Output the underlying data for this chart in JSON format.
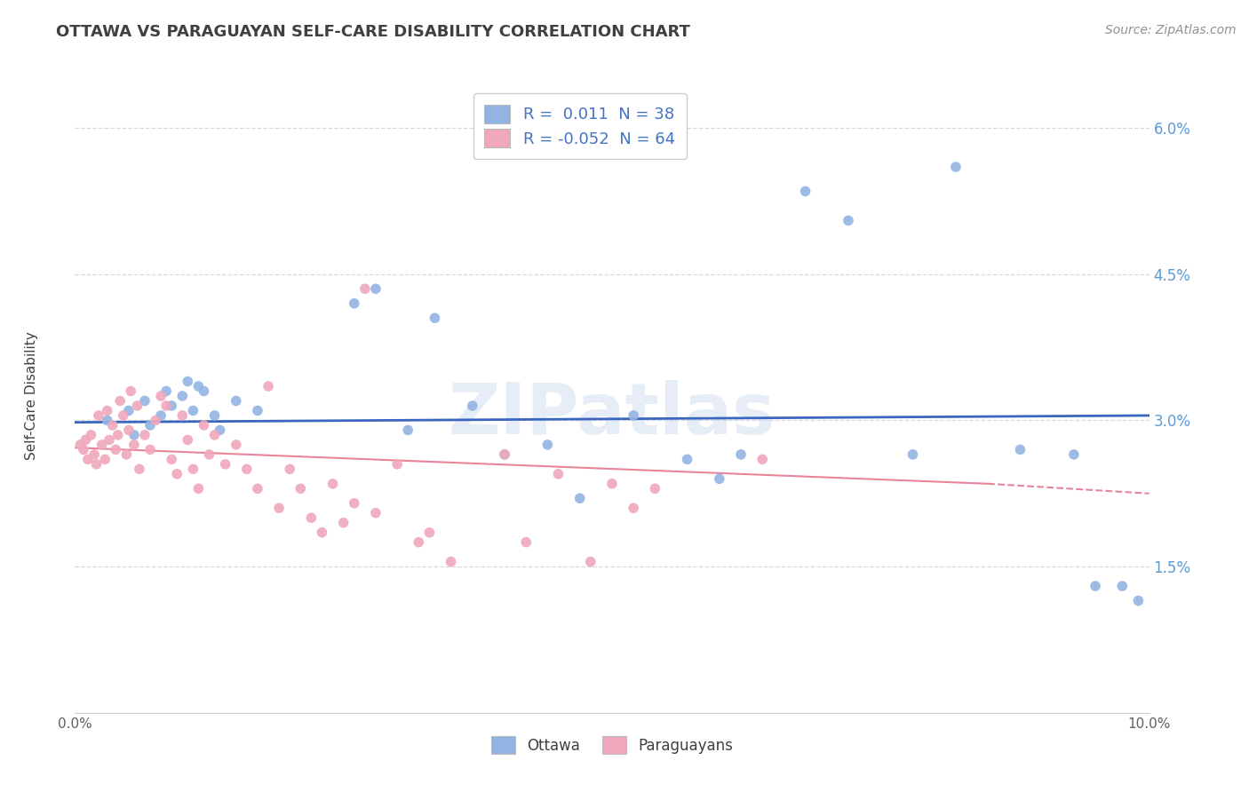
{
  "title": "OTTAWA VS PARAGUAYAN SELF-CARE DISABILITY CORRELATION CHART",
  "source": "Source: ZipAtlas.com",
  "ylabel": "Self-Care Disability",
  "xlim": [
    0.0,
    10.0
  ],
  "ylim": [
    0.0,
    6.5
  ],
  "yticks": [
    1.5,
    3.0,
    4.5,
    6.0
  ],
  "ytick_labels": [
    "1.5%",
    "3.0%",
    "4.5%",
    "6.0%"
  ],
  "ottawa_color": "#92b4e3",
  "paraguayan_color": "#f0a8bc",
  "trendline_ottawa_color": "#3a66c0",
  "trendline_paraguayan_color": "#e8849a",
  "watermark": "ZIPatlas",
  "bg_color": "#ffffff",
  "grid_color": "#d8d8d8",
  "title_color": "#404040",
  "source_color": "#909090",
  "ottawa_points": [
    [
      0.3,
      3.0
    ],
    [
      0.5,
      3.1
    ],
    [
      0.55,
      2.85
    ],
    [
      0.65,
      3.2
    ],
    [
      0.7,
      2.95
    ],
    [
      0.8,
      3.05
    ],
    [
      0.85,
      3.3
    ],
    [
      0.9,
      3.15
    ],
    [
      1.0,
      3.25
    ],
    [
      1.05,
      3.4
    ],
    [
      1.1,
      3.1
    ],
    [
      1.15,
      3.35
    ],
    [
      1.2,
      3.3
    ],
    [
      1.3,
      3.05
    ],
    [
      1.35,
      2.9
    ],
    [
      1.5,
      3.2
    ],
    [
      1.7,
      3.1
    ],
    [
      2.6,
      4.2
    ],
    [
      2.8,
      4.35
    ],
    [
      3.1,
      2.9
    ],
    [
      3.35,
      4.05
    ],
    [
      3.7,
      3.15
    ],
    [
      4.0,
      2.65
    ],
    [
      4.4,
      2.75
    ],
    [
      4.7,
      2.2
    ],
    [
      5.2,
      3.05
    ],
    [
      5.7,
      2.6
    ],
    [
      6.0,
      2.4
    ],
    [
      6.2,
      2.65
    ],
    [
      6.8,
      5.35
    ],
    [
      7.2,
      5.05
    ],
    [
      7.8,
      2.65
    ],
    [
      8.2,
      5.6
    ],
    [
      8.8,
      2.7
    ],
    [
      9.3,
      2.65
    ],
    [
      9.5,
      1.3
    ],
    [
      9.75,
      1.3
    ],
    [
      9.9,
      1.15
    ]
  ],
  "paraguayan_points": [
    [
      0.05,
      2.75
    ],
    [
      0.08,
      2.7
    ],
    [
      0.1,
      2.8
    ],
    [
      0.12,
      2.6
    ],
    [
      0.15,
      2.85
    ],
    [
      0.18,
      2.65
    ],
    [
      0.2,
      2.55
    ],
    [
      0.22,
      3.05
    ],
    [
      0.25,
      2.75
    ],
    [
      0.28,
      2.6
    ],
    [
      0.3,
      3.1
    ],
    [
      0.32,
      2.8
    ],
    [
      0.35,
      2.95
    ],
    [
      0.38,
      2.7
    ],
    [
      0.4,
      2.85
    ],
    [
      0.42,
      3.2
    ],
    [
      0.45,
      3.05
    ],
    [
      0.48,
      2.65
    ],
    [
      0.5,
      2.9
    ],
    [
      0.52,
      3.3
    ],
    [
      0.55,
      2.75
    ],
    [
      0.58,
      3.15
    ],
    [
      0.6,
      2.5
    ],
    [
      0.65,
      2.85
    ],
    [
      0.7,
      2.7
    ],
    [
      0.75,
      3.0
    ],
    [
      0.8,
      3.25
    ],
    [
      0.85,
      3.15
    ],
    [
      0.9,
      2.6
    ],
    [
      0.95,
      2.45
    ],
    [
      1.0,
      3.05
    ],
    [
      1.05,
      2.8
    ],
    [
      1.1,
      2.5
    ],
    [
      1.15,
      2.3
    ],
    [
      1.2,
      2.95
    ],
    [
      1.25,
      2.65
    ],
    [
      1.3,
      2.85
    ],
    [
      1.4,
      2.55
    ],
    [
      1.5,
      2.75
    ],
    [
      1.6,
      2.5
    ],
    [
      1.7,
      2.3
    ],
    [
      1.8,
      3.35
    ],
    [
      1.9,
      2.1
    ],
    [
      2.0,
      2.5
    ],
    [
      2.1,
      2.3
    ],
    [
      2.2,
      2.0
    ],
    [
      2.3,
      1.85
    ],
    [
      2.4,
      2.35
    ],
    [
      2.5,
      1.95
    ],
    [
      2.6,
      2.15
    ],
    [
      2.7,
      4.35
    ],
    [
      2.8,
      2.05
    ],
    [
      3.0,
      2.55
    ],
    [
      3.2,
      1.75
    ],
    [
      3.3,
      1.85
    ],
    [
      3.5,
      1.55
    ],
    [
      4.0,
      2.65
    ],
    [
      4.2,
      1.75
    ],
    [
      4.5,
      2.45
    ],
    [
      4.8,
      1.55
    ],
    [
      5.0,
      2.35
    ],
    [
      5.2,
      2.1
    ],
    [
      5.4,
      2.3
    ],
    [
      6.4,
      2.6
    ]
  ]
}
